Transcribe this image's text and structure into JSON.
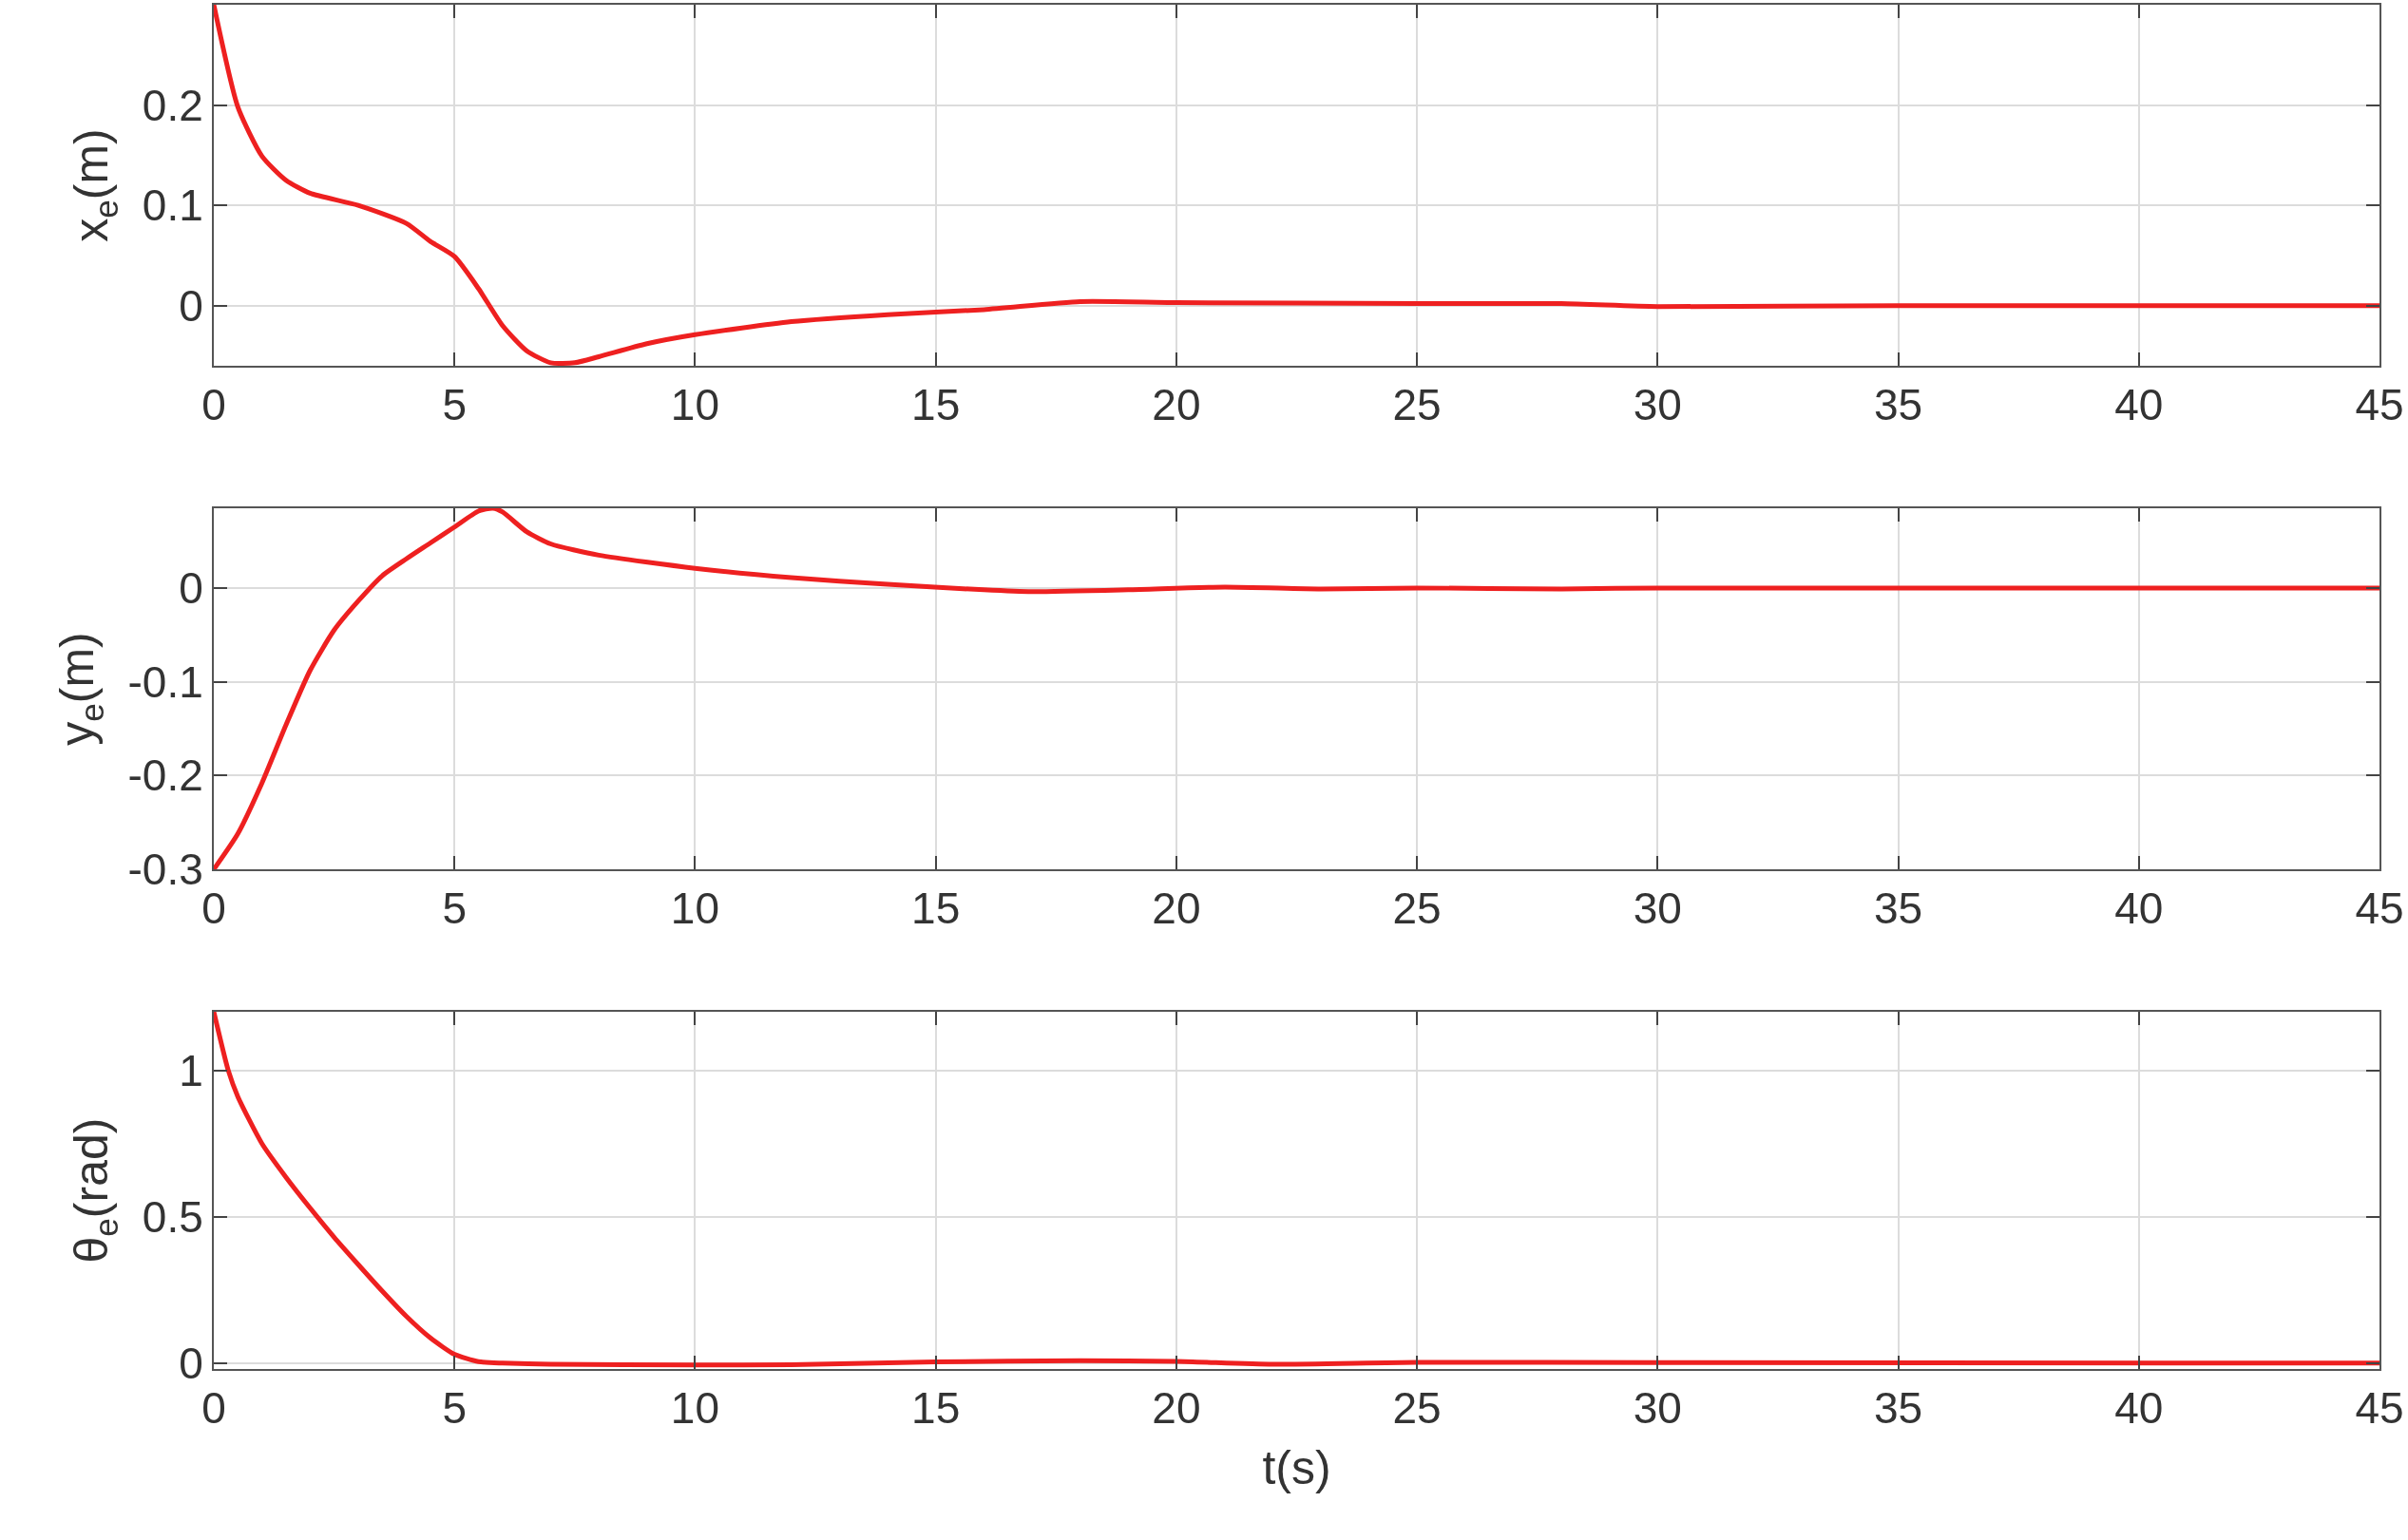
{
  "chart_data": [
    {
      "type": "line",
      "ylabel": "x$_{e}$(m)",
      "xlim": [
        0,
        45
      ],
      "xticks": [
        0,
        5,
        10,
        15,
        20,
        25,
        30,
        35,
        40,
        45
      ],
      "ylim": [
        -0.06,
        0.3
      ],
      "yticks": [
        0,
        0.1,
        0.2
      ],
      "grid": true,
      "line_style": "solid",
      "marker": "none",
      "series": [
        {
          "color": "#ee2020",
          "x": [
            0,
            0.5,
            1,
            1.5,
            2,
            3,
            4,
            4.5,
            5,
            5.5,
            6,
            6.5,
            7,
            7.5,
            8,
            9,
            10,
            12,
            14,
            16,
            18,
            20,
            25,
            28,
            30,
            35,
            45
          ],
          "values": [
            0.3,
            0.198,
            0.149,
            0.125,
            0.112,
            0.1,
            0.082,
            0.064,
            0.049,
            0.017,
            -0.02,
            -0.045,
            -0.057,
            -0.057,
            -0.051,
            -0.038,
            -0.029,
            -0.016,
            -0.009,
            -0.004,
            0.004,
            0.003,
            0.002,
            0.002,
            -0.001,
            0,
            0
          ]
        }
      ]
    },
    {
      "type": "line",
      "ylabel": "y$_{e}$(m)",
      "xlim": [
        0,
        45
      ],
      "xticks": [
        0,
        5,
        10,
        15,
        20,
        25,
        30,
        35,
        40,
        45
      ],
      "ylim": [
        -0.3,
        0.085
      ],
      "yticks": [
        -0.3,
        -0.2,
        -0.1,
        0
      ],
      "grid": true,
      "line_style": "solid",
      "marker": "none",
      "series": [
        {
          "color": "#ee2020",
          "x": [
            0,
            0.5,
            1,
            1.5,
            2,
            2.5,
            3,
            3.5,
            4,
            4.5,
            5,
            5.5,
            5.8,
            6,
            6.5,
            7,
            8,
            10,
            12,
            14,
            16,
            17,
            19,
            21,
            23,
            25,
            28,
            30,
            45
          ],
          "values": [
            -0.3,
            -0.262,
            -0.208,
            -0.146,
            -0.088,
            -0.045,
            -0.014,
            0.013,
            0.031,
            0.048,
            0.065,
            0.082,
            0.085,
            0.081,
            0.06,
            0.047,
            0.035,
            0.021,
            0.011,
            0.004,
            -0.002,
            -0.004,
            -0.002,
            0.001,
            -0.001,
            0,
            -0.001,
            0,
            0
          ]
        }
      ]
    },
    {
      "type": "line",
      "ylabel": "θ$_{e}$(rad)",
      "xlabel": "t(s)",
      "xlim": [
        0,
        45
      ],
      "xticks": [
        0,
        5,
        10,
        15,
        20,
        25,
        30,
        35,
        40,
        45
      ],
      "ylim": [
        -0.02,
        1.2
      ],
      "yticks": [
        0,
        0.5,
        1
      ],
      "grid": true,
      "line_style": "solid",
      "marker": "none",
      "series": [
        {
          "color": "#ee2020",
          "x": [
            0,
            0.3,
            0.5,
            1,
            1.5,
            2,
            2.5,
            3,
            3.5,
            4,
            4.5,
            5,
            5.5,
            6,
            7,
            10,
            12,
            15,
            18,
            20,
            22,
            25,
            30,
            45
          ],
          "values": [
            1.2,
            1.0,
            0.91,
            0.75,
            0.635,
            0.53,
            0.43,
            0.337,
            0.246,
            0.16,
            0.086,
            0.03,
            0.005,
            0,
            -0.004,
            -0.006,
            -0.005,
            0.004,
            0.008,
            0.006,
            -0.004,
            0.003,
            0.002,
            0
          ]
        }
      ]
    }
  ]
}
